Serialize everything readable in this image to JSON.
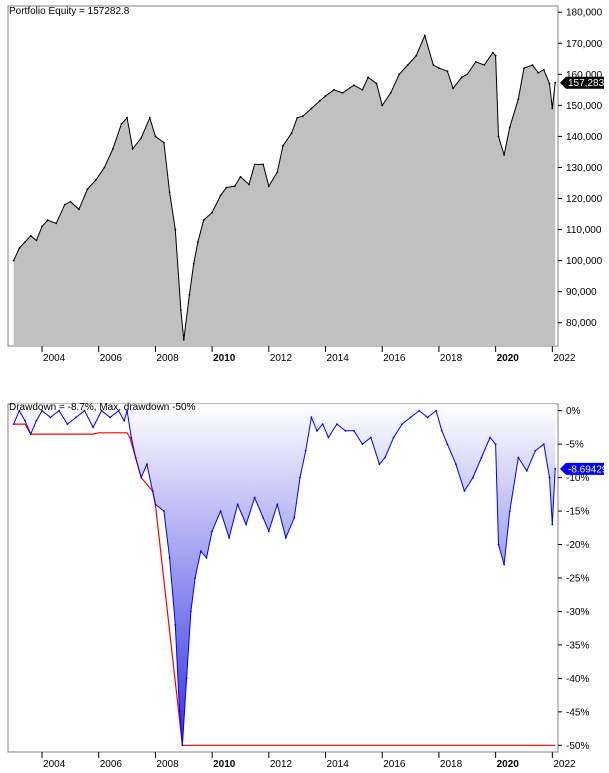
{
  "equity": {
    "title": "Portfolio Equity = 157282.8",
    "value_label": "157,283",
    "value_label_color": "#000000",
    "chart_data": {
      "type": "area",
      "title": "Portfolio Equity = 157282.8",
      "xlabel": "",
      "ylabel": "",
      "xlim": [
        2002.8,
        2022.2
      ],
      "ylim": [
        72500,
        182000
      ],
      "x_ticks": [
        2004,
        2006,
        2008,
        2010,
        2012,
        2014,
        2016,
        2018,
        2020,
        2022
      ],
      "x_tick_labels": [
        "2004",
        "2006",
        "2008",
        "2010",
        "2012",
        "2014",
        "2016",
        "2018",
        "2020",
        "2022"
      ],
      "bold_ticks": [
        "2010",
        "2020"
      ],
      "y_ticks": [
        80000,
        90000,
        100000,
        110000,
        120000,
        130000,
        140000,
        150000,
        160000,
        170000,
        180000
      ],
      "y_tick_labels": [
        "80,000",
        "90,000",
        "100,000",
        "110,000",
        "120,000",
        "130,000",
        "140,000",
        "150,000",
        "160,000",
        "170,000",
        "180,000"
      ],
      "fill_color": "#c0c0c0",
      "line_color": "#000000",
      "series": [
        {
          "x": [
            2003.0,
            2003.2,
            2003.4,
            2003.6,
            2003.8,
            2004.0,
            2004.2,
            2004.5,
            2004.8,
            2005.0,
            2005.3,
            2005.6,
            2005.9,
            2006.2,
            2006.5,
            2006.8,
            2007.0,
            2007.2,
            2007.5,
            2007.8,
            2008.0,
            2008.3,
            2008.5,
            2008.7,
            2008.9,
            2009.0,
            2009.2,
            2009.35,
            2009.5,
            2009.7,
            2010.0,
            2010.3,
            2010.5,
            2010.8,
            2011.0,
            2011.3,
            2011.5,
            2011.8,
            2012.0,
            2012.3,
            2012.5,
            2012.8,
            2013.0,
            2013.2,
            2013.5,
            2013.8,
            2014.0,
            2014.3,
            2014.6,
            2015.0,
            2015.3,
            2015.5,
            2015.8,
            2016.0,
            2016.3,
            2016.6,
            2016.9,
            2017.2,
            2017.5,
            2017.8,
            2018.0,
            2018.3,
            2018.5,
            2018.8,
            2019.0,
            2019.3,
            2019.6,
            2019.9,
            2020.0,
            2020.1,
            2020.3,
            2020.5,
            2020.8,
            2021.0,
            2021.3,
            2021.5,
            2021.7,
            2021.9,
            2022.0,
            2022.1
          ],
          "y": [
            100000,
            104000,
            106000,
            108000,
            106500,
            111000,
            113000,
            112000,
            118000,
            119000,
            116500,
            123000,
            126000,
            130000,
            136000,
            144000,
            146000,
            136000,
            139500,
            146000,
            140000,
            138000,
            122000,
            110000,
            84000,
            74500,
            89000,
            99000,
            106000,
            113000,
            115500,
            121000,
            123500,
            124000,
            127000,
            124500,
            131000,
            131000,
            124000,
            128500,
            137000,
            141000,
            146000,
            146500,
            149000,
            151500,
            153000,
            155000,
            154000,
            156500,
            155000,
            159000,
            157000,
            150000,
            154000,
            160000,
            163000,
            166000,
            172500,
            163000,
            162000,
            161000,
            155500,
            159000,
            160000,
            164000,
            163000,
            167000,
            166000,
            140000,
            134000,
            143000,
            152000,
            162000,
            163000,
            160500,
            161500,
            157000,
            149000,
            157283
          ]
        }
      ]
    }
  },
  "drawdown": {
    "title": "Drawdown = -8.7%, Max. drawdown -50%",
    "value_label": "-8.69429",
    "value_label_color": "#0000ff",
    "chart_data": {
      "type": "area",
      "title": "Drawdown = -8.7%, Max. drawdown -50%",
      "xlabel": "",
      "ylabel": "",
      "xlim": [
        2002.8,
        2022.2
      ],
      "ylim": [
        -51,
        1
      ],
      "x_ticks": [
        2004,
        2006,
        2008,
        2010,
        2012,
        2014,
        2016,
        2018,
        2020,
        2022
      ],
      "x_tick_labels": [
        "2004",
        "2006",
        "2008",
        "2010",
        "2012",
        "2014",
        "2016",
        "2018",
        "2020",
        "2022"
      ],
      "bold_ticks": [
        "2010",
        "2020"
      ],
      "y_ticks": [
        0,
        -5,
        -10,
        -15,
        -20,
        -25,
        -30,
        -35,
        -40,
        -45,
        -50
      ],
      "y_tick_labels": [
        "0%",
        "-5%",
        "-10%",
        "-15%",
        "-20%",
        "-25%",
        "-30%",
        "-35%",
        "-40%",
        "-45%",
        "-50%"
      ],
      "fill_color_top": "#ffffff",
      "fill_color_bottom": "#3030e0",
      "line_color": "#0000ff",
      "max_dd_color": "#ff0000",
      "series": [
        {
          "x": [
            2003.0,
            2003.2,
            2003.4,
            2003.6,
            2003.8,
            2004.0,
            2004.3,
            2004.6,
            2004.9,
            2005.2,
            2005.5,
            2005.8,
            2006.1,
            2006.4,
            2006.7,
            2006.9,
            2007.0,
            2007.15,
            2007.3,
            2007.5,
            2007.7,
            2007.9,
            2008.0,
            2008.3,
            2008.5,
            2008.7,
            2008.85,
            2008.95,
            2009.1,
            2009.25,
            2009.4,
            2009.6,
            2009.8,
            2010.0,
            2010.3,
            2010.6,
            2010.9,
            2011.2,
            2011.5,
            2011.8,
            2012.0,
            2012.3,
            2012.6,
            2012.9,
            2013.1,
            2013.3,
            2013.5,
            2013.7,
            2013.9,
            2014.1,
            2014.4,
            2014.7,
            2015.0,
            2015.3,
            2015.6,
            2015.9,
            2016.1,
            2016.4,
            2016.7,
            2017.0,
            2017.3,
            2017.6,
            2017.9,
            2018.1,
            2018.3,
            2018.6,
            2018.9,
            2019.2,
            2019.5,
            2019.8,
            2020.0,
            2020.1,
            2020.3,
            2020.5,
            2020.8,
            2021.1,
            2021.4,
            2021.7,
            2021.9,
            2022.0,
            2022.1
          ],
          "y": [
            -2.0,
            0,
            -1.5,
            -3.5,
            -1.5,
            0,
            -1.0,
            0,
            -2.0,
            -1.0,
            0,
            -2.5,
            0,
            -1.0,
            0,
            -1.5,
            0,
            -4.0,
            -7.0,
            -10.0,
            -8.0,
            -12.0,
            -14.0,
            -15.0,
            -22.0,
            -32.0,
            -45.0,
            -50.0,
            -40.0,
            -30.0,
            -25.0,
            -21.0,
            -22.0,
            -18.0,
            -15.0,
            -19.0,
            -14.0,
            -17.0,
            -13.0,
            -16.0,
            -18.0,
            -14.0,
            -19.0,
            -16.0,
            -10.0,
            -6.0,
            -1.0,
            -3.0,
            -2.0,
            -4.0,
            -2.0,
            -3.0,
            -3.0,
            -5.0,
            -4.0,
            -8.0,
            -7.0,
            -4.0,
            -2.0,
            -1.0,
            0,
            -1.0,
            0,
            -3.0,
            -5.0,
            -8.0,
            -12.0,
            -10.0,
            -7.0,
            -4.0,
            -5.0,
            -20.0,
            -23.0,
            -15.0,
            -7.0,
            -9.0,
            -6.0,
            -5.0,
            -10.0,
            -17.0,
            -8.69
          ]
        }
      ],
      "max_drawdown_line": {
        "x": [
          2003.0,
          2003.4,
          2003.6,
          2005.8,
          2006.0,
          2007.0,
          2007.1,
          2007.3,
          2007.5,
          2007.9,
          2008.0,
          2008.95,
          2022.1
        ],
        "y": [
          -2.0,
          -2.0,
          -3.5,
          -3.5,
          -3.3,
          -3.3,
          -4.0,
          -7.0,
          -10.0,
          -12.0,
          -14.0,
          -50.0,
          -50.0
        ]
      }
    }
  }
}
